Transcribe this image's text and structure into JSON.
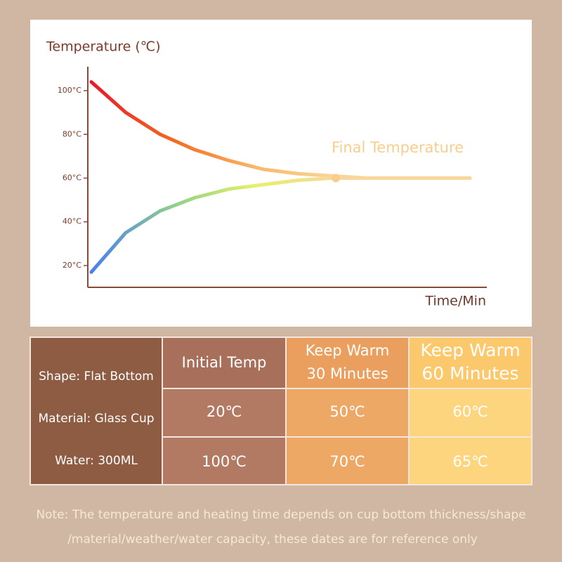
{
  "chart_data": {
    "type": "line",
    "y_label": "Temperature (℃)",
    "x_label": "Time/Min",
    "annotation": "Final Temperature",
    "categories": [
      null,
      null,
      null,
      null,
      null,
      null,
      null,
      null,
      null,
      null,
      null,
      null
    ],
    "series": [
      {
        "colors": [
          "#e8182a",
          "#f36a1f",
          "#f8b86a",
          "#f9d79a"
        ],
        "values": [
          104,
          90,
          80,
          73,
          68,
          64,
          62,
          61,
          60,
          60,
          60,
          60
        ]
      },
      {
        "colors": [
          "#4a7ef0",
          "#8fd08a",
          "#e6f06a",
          "#f9d79a"
        ],
        "values": [
          17,
          35,
          45,
          51,
          55,
          57,
          59,
          60,
          60,
          60,
          60,
          60
        ]
      }
    ],
    "ylim": [
      10,
      110
    ],
    "yticks": [
      {
        "value": 20,
        "label": "20°C"
      },
      {
        "value": 40,
        "label": "40°C"
      },
      {
        "value": 60,
        "label": "60°C"
      },
      {
        "value": 80,
        "label": "80°C"
      },
      {
        "value": 100,
        "label": "100°C"
      }
    ]
  },
  "table": {
    "specs": [
      "Shape: Flat Bottom",
      "Material: Glass Cup",
      "Water: 300ML"
    ],
    "columns": [
      [
        "Initial Temp"
      ],
      [
        "Keep Warm",
        "30 Minutes"
      ],
      [
        "Keep Warm",
        "60 Minutes"
      ]
    ],
    "rows": [
      [
        "20℃",
        "50℃",
        "60℃"
      ],
      [
        "100℃",
        "70℃",
        "65℃"
      ]
    ]
  },
  "note": [
    "Note: The temperature and heating time depends on cup bottom thickness/shape",
    "/material/weather/water capacity, these dates are for reference only"
  ]
}
